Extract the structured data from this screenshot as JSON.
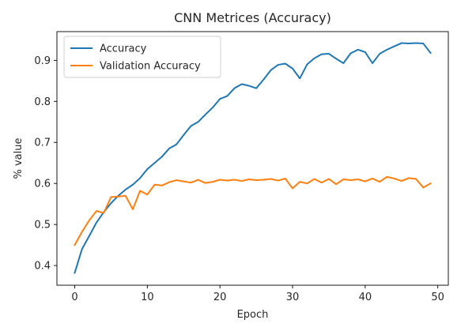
{
  "chart_data": {
    "type": "line",
    "title": "CNN Metrices (Accuracy)",
    "xlabel": "Epoch",
    "ylabel": "% value",
    "xlim": [
      -2.45,
      51.45
    ],
    "ylim": [
      0.352,
      0.97
    ],
    "xticks": [
      0,
      10,
      20,
      30,
      40,
      50
    ],
    "yticks": [
      0.4,
      0.5,
      0.6,
      0.7,
      0.8,
      0.9
    ],
    "grid": false,
    "legend_position": "top-left",
    "x": [
      0,
      1,
      2,
      3,
      4,
      5,
      6,
      7,
      8,
      9,
      10,
      11,
      12,
      13,
      14,
      15,
      16,
      17,
      18,
      19,
      20,
      21,
      22,
      23,
      24,
      25,
      26,
      27,
      28,
      29,
      30,
      31,
      32,
      33,
      34,
      35,
      36,
      37,
      38,
      39,
      40,
      41,
      42,
      43,
      44,
      45,
      46,
      47,
      48,
      49
    ],
    "series": [
      {
        "name": "Accuracy",
        "color": "#1f77b4",
        "values": [
          0.382,
          0.44,
          0.472,
          0.505,
          0.53,
          0.552,
          0.57,
          0.585,
          0.597,
          0.613,
          0.635,
          0.65,
          0.665,
          0.685,
          0.695,
          0.718,
          0.74,
          0.75,
          0.768,
          0.785,
          0.806,
          0.813,
          0.832,
          0.842,
          0.838,
          0.832,
          0.853,
          0.876,
          0.889,
          0.892,
          0.88,
          0.856,
          0.89,
          0.905,
          0.915,
          0.916,
          0.904,
          0.893,
          0.917,
          0.926,
          0.92,
          0.893,
          0.916,
          0.926,
          0.934,
          0.942,
          0.941,
          0.942,
          0.941,
          0.918
        ]
      },
      {
        "name": "Validation Accuracy",
        "color": "#ff7f0e",
        "values": [
          0.45,
          0.482,
          0.51,
          0.533,
          0.528,
          0.567,
          0.568,
          0.57,
          0.537,
          0.582,
          0.573,
          0.597,
          0.595,
          0.603,
          0.608,
          0.605,
          0.602,
          0.609,
          0.601,
          0.604,
          0.609,
          0.607,
          0.609,
          0.606,
          0.61,
          0.608,
          0.609,
          0.611,
          0.607,
          0.612,
          0.588,
          0.604,
          0.6,
          0.611,
          0.602,
          0.611,
          0.598,
          0.61,
          0.608,
          0.61,
          0.605,
          0.612,
          0.604,
          0.616,
          0.612,
          0.606,
          0.613,
          0.611,
          0.59,
          0.6
        ]
      }
    ]
  }
}
